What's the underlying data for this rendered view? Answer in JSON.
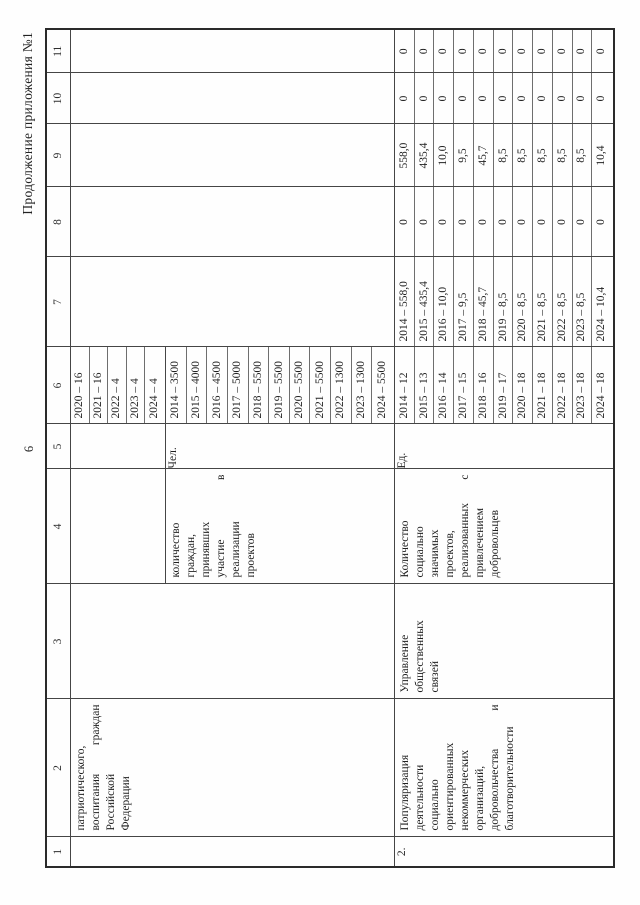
{
  "page": {
    "number": "6",
    "header_right": "Продолжение приложения №1"
  },
  "table": {
    "column_numbers": [
      "1",
      "2",
      "3",
      "4",
      "5",
      "6",
      "7",
      "8",
      "9",
      "10",
      "11"
    ],
    "row1": {
      "col2_lines": [
        "патриотического,",
        "воспитания граждан",
        "Российской",
        "Федерации"
      ],
      "sub_a": {
        "col6_years": [
          "2020 – 16",
          "2021 – 16",
          "2022 – 4",
          "2023 – 4",
          "2024 – 4"
        ]
      },
      "sub_b": {
        "col4_lines": [
          "количество",
          "граждан,",
          "принявших",
          "участие в",
          "реализации",
          "проектов"
        ],
        "col5_unit": "Чел.",
        "col6_years": [
          "2014 – 3500",
          "2015 – 4000",
          "2016 – 4500",
          "2017 – 5000",
          "2018 – 5500",
          "2019 – 5500",
          "2020 – 5500",
          "2021 – 5500",
          "2022 – 1300",
          "2023 – 1300",
          "2024 – 5500"
        ]
      }
    },
    "row2": {
      "num": "2.",
      "col2_lines": [
        "Популяризация",
        "деятельности",
        "социально",
        "ориентированных",
        "некоммерческих",
        "организаций,",
        "добровольчества и",
        "благотворительности"
      ],
      "col3_lines": [
        "Управление",
        "общественных",
        "связей"
      ],
      "col4_lines": [
        "Количество",
        "социально",
        "значимых",
        "проектов,",
        "реализованных с",
        "привлечением",
        "добровольцев"
      ],
      "col5_unit": "Ед.",
      "col6_years": [
        "2014 – 12",
        "2015 – 13",
        "2016 – 14",
        "2017 – 15",
        "2018 – 16",
        "2019 – 17",
        "2020 – 18",
        "2021 – 18",
        "2022 – 18",
        "2023 – 18",
        "2024 – 18"
      ],
      "col7_years": [
        "2014 – 558,0",
        "2015 – 435,4",
        "2016 – 10,0",
        "2017 – 9,5",
        "2018 – 45,7",
        "2019 – 8,5",
        "2020 – 8,5",
        "2021 – 8,5",
        "2022 – 8,5",
        "2023 – 8,5",
        "2024 – 10,4"
      ],
      "col8_values": [
        "0",
        "0",
        "0",
        "0",
        "0",
        "0",
        "0",
        "0",
        "0",
        "0",
        "0"
      ],
      "col9_values": [
        "558,0",
        "435,4",
        "10,0",
        "9,5",
        "45,7",
        "8,5",
        "8,5",
        "8,5",
        "8,5",
        "8,5",
        "10,4"
      ],
      "col10_values": [
        "0",
        "0",
        "0",
        "0",
        "0",
        "0",
        "0",
        "0",
        "0",
        "0",
        "0"
      ],
      "col11_values": [
        "0",
        "0",
        "0",
        "0",
        "0",
        "0",
        "0",
        "0",
        "0",
        "0",
        "0"
      ]
    }
  }
}
